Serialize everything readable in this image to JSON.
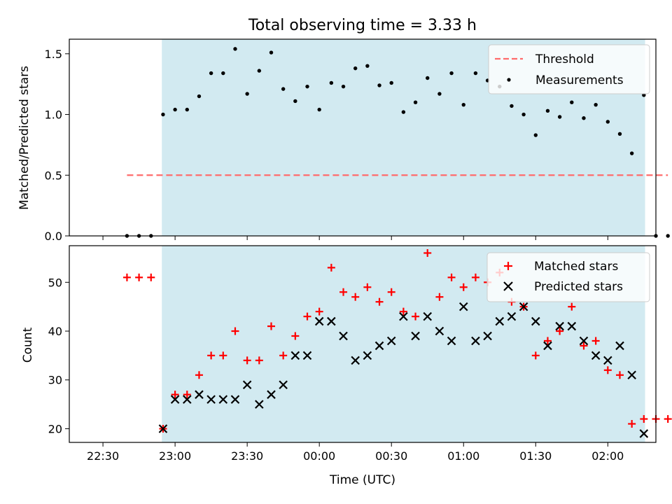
{
  "title": "Total observing time = 3.33 h",
  "colors": {
    "shade": "#add8e6",
    "threshold": "#ff6b6b",
    "measurement": "#000000",
    "matched": "#ff0000",
    "predicted": "#000000"
  },
  "chart_data": [
    {
      "type": "scatter",
      "panel": "top",
      "ylabel": "Matched/Predicted stars",
      "xlabel": "",
      "ylim": [
        0,
        1.62
      ],
      "yticks": [
        0.0,
        0.5,
        1.0,
        1.5
      ],
      "ytick_labels": [
        "0.0",
        "0.5",
        "1.0",
        "1.5"
      ],
      "shaded_interval_min": [
        24.5,
        225.5
      ],
      "threshold": {
        "y": 0.5,
        "x_start_min": 10,
        "x_end_min": 235
      },
      "legend": [
        "Threshold",
        "Measurements"
      ],
      "legend_position": "upper right",
      "series": [
        {
          "name": "Threshold",
          "style": "dashed-line"
        },
        {
          "name": "Measurements",
          "style": "dot",
          "x_min": [
            10,
            15,
            20,
            25,
            30,
            35,
            40,
            45,
            50,
            55,
            60,
            65,
            70,
            75,
            80,
            85,
            90,
            95,
            100,
            105,
            110,
            115,
            120,
            125,
            130,
            135,
            140,
            145,
            150,
            155,
            160,
            165,
            170,
            175,
            180,
            185,
            190,
            195,
            200,
            205,
            210,
            215,
            220,
            225,
            230,
            235
          ],
          "y": [
            0,
            0,
            0,
            1.0,
            1.04,
            1.04,
            1.15,
            1.34,
            1.34,
            1.54,
            1.17,
            1.36,
            1.51,
            1.21,
            1.11,
            1.23,
            1.04,
            1.26,
            1.23,
            1.38,
            1.4,
            1.24,
            1.26,
            1.02,
            1.1,
            1.3,
            1.17,
            1.34,
            1.08,
            1.34,
            1.28,
            1.23,
            1.07,
            1.0,
            0.83,
            1.03,
            0.98,
            1.1,
            0.97,
            1.08,
            0.94,
            0.84,
            0.68,
            1.16,
            0,
            0
          ]
        }
      ]
    },
    {
      "type": "scatter",
      "panel": "bottom",
      "xlabel": "Time (UTC)",
      "ylabel": "Count",
      "ylim": [
        17.2,
        57.5
      ],
      "yticks": [
        20,
        30,
        40,
        50
      ],
      "ytick_labels": [
        "20",
        "30",
        "40",
        "50"
      ],
      "xlim_min": [
        -14,
        230
      ],
      "xticks_min": [
        0,
        30,
        60,
        90,
        120,
        150,
        180,
        210
      ],
      "xtick_labels": [
        "22:30",
        "23:00",
        "23:30",
        "00:00",
        "00:30",
        "01:00",
        "01:30",
        "02:00"
      ],
      "shaded_interval_min": [
        24.5,
        225.5
      ],
      "legend": [
        "Matched stars",
        "Predicted stars"
      ],
      "legend_position": "upper right",
      "series": [
        {
          "name": "Matched stars",
          "marker": "+",
          "x_min": [
            10,
            15,
            20,
            25,
            30,
            35,
            40,
            45,
            50,
            55,
            60,
            65,
            70,
            75,
            80,
            85,
            90,
            95,
            100,
            105,
            110,
            115,
            120,
            125,
            130,
            135,
            140,
            145,
            150,
            155,
            160,
            165,
            170,
            175,
            180,
            185,
            190,
            195,
            200,
            205,
            210,
            215,
            220,
            225,
            230,
            235
          ],
          "y": [
            51,
            51,
            51,
            20,
            27,
            27,
            31,
            35,
            35,
            40,
            34,
            34,
            41,
            35,
            39,
            43,
            44,
            53,
            48,
            47,
            49,
            46,
            48,
            44,
            43,
            56,
            47,
            51,
            49,
            51,
            50,
            52,
            46,
            45,
            35,
            38,
            40,
            45,
            37,
            38,
            32,
            31,
            21,
            22,
            22,
            22
          ]
        },
        {
          "name": "Predicted stars",
          "marker": "x",
          "x_min": [
            25,
            30,
            35,
            40,
            45,
            50,
            55,
            60,
            65,
            70,
            75,
            80,
            85,
            90,
            95,
            100,
            105,
            110,
            115,
            120,
            125,
            130,
            135,
            140,
            145,
            150,
            155,
            160,
            165,
            170,
            175,
            180,
            185,
            190,
            195,
            200,
            205,
            210,
            215,
            220,
            225
          ],
          "y": [
            20,
            26,
            26,
            27,
            26,
            26,
            26,
            29,
            25,
            27,
            29,
            35,
            35,
            42,
            42,
            39,
            34,
            35,
            37,
            38,
            43,
            39,
            43,
            40,
            38,
            45,
            38,
            39,
            42,
            43,
            45,
            42,
            37,
            41,
            41,
            38,
            35,
            34,
            37,
            31,
            19
          ]
        }
      ]
    }
  ]
}
